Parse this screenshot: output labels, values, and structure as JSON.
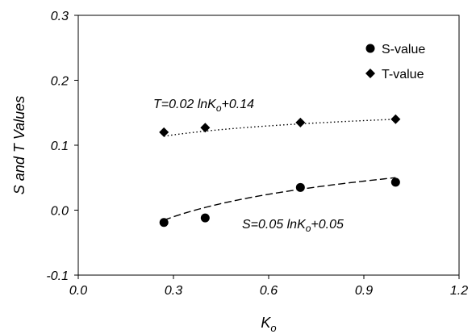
{
  "chart_data": {
    "type": "scatter",
    "xlabel": "K",
    "xlabel_sub": "o",
    "ylabel": "S and T Values",
    "xlim": [
      0.0,
      1.2
    ],
    "ylim": [
      -0.1,
      0.3
    ],
    "x_ticks": [
      "0.0",
      "0.3",
      "0.6",
      "0.9",
      "1.2"
    ],
    "y_ticks": [
      "-0.1",
      "0.0",
      "0.1",
      "0.2",
      "0.3"
    ],
    "grid": false,
    "legend_position": "top-right",
    "series": [
      {
        "name": "S-value",
        "marker": "circle",
        "x": [
          0.27,
          0.4,
          0.7,
          1.0
        ],
        "y": [
          -0.019,
          -0.012,
          0.035,
          0.043
        ],
        "fit": {
          "a": 0.05,
          "b": 0.05,
          "dash": "long"
        }
      },
      {
        "name": "T-value",
        "marker": "diamond",
        "x": [
          0.27,
          0.4,
          0.7,
          1.0
        ],
        "y": [
          0.12,
          0.127,
          0.135,
          0.14
        ],
        "fit": {
          "a": 0.02,
          "b": 0.14,
          "dash": "dotted"
        }
      }
    ],
    "annotations": [
      {
        "id": "t-eq",
        "pre": "T=0.02 ",
        "ln": "ln",
        "k": "K",
        "sub": "o",
        "post": "+0.14"
      },
      {
        "id": "s-eq",
        "pre": "S=0.05 ",
        "ln": "ln",
        "k": "K",
        "sub": "o",
        "post": "+0.05"
      }
    ]
  }
}
